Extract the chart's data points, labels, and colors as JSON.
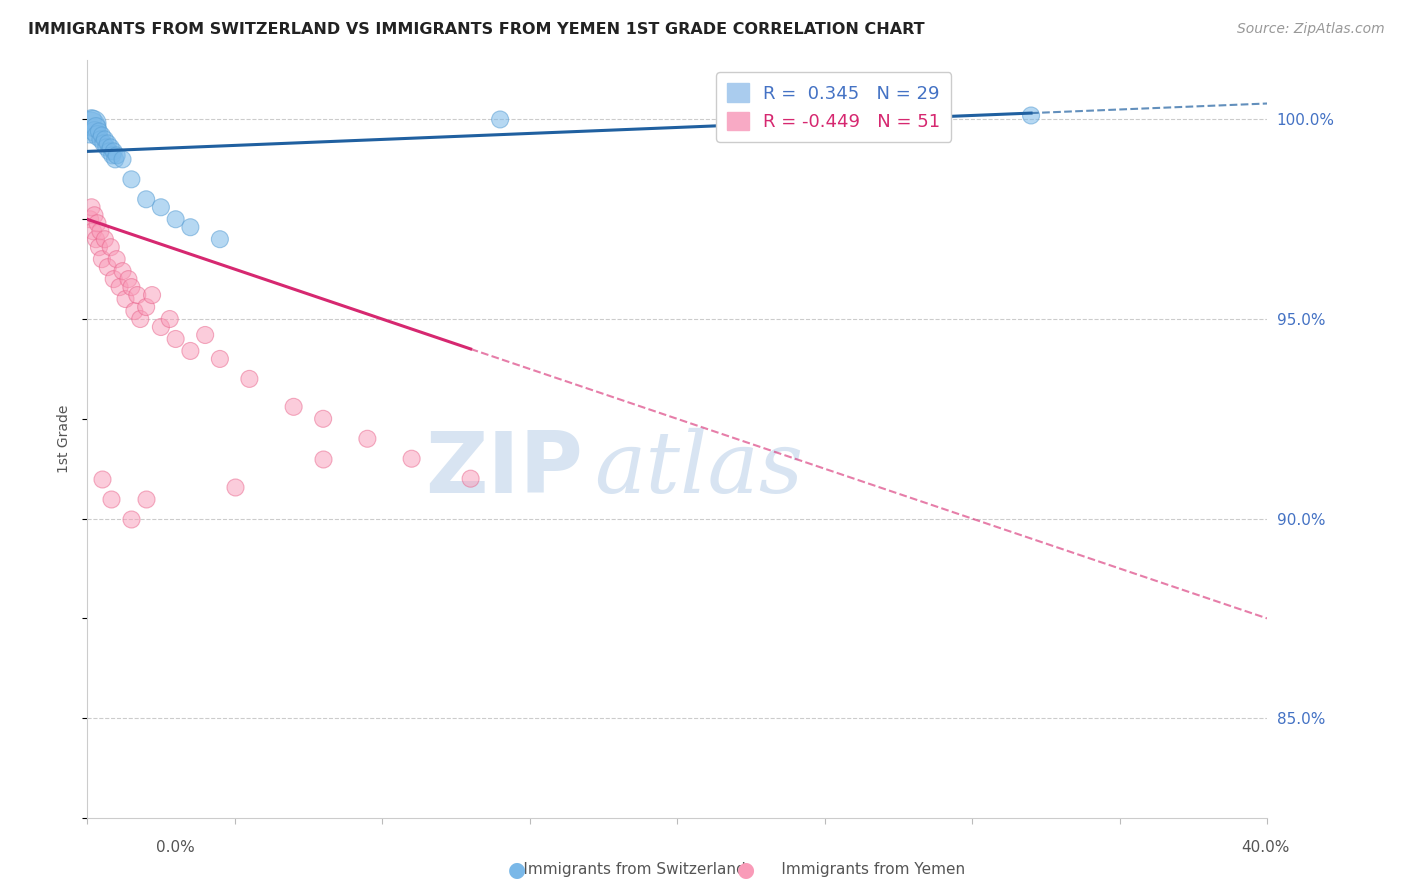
{
  "title": "IMMIGRANTS FROM SWITZERLAND VS IMMIGRANTS FROM YEMEN 1ST GRADE CORRELATION CHART",
  "source": "Source: ZipAtlas.com",
  "ylabel": "1st Grade",
  "xmin": 0.0,
  "xmax": 40.0,
  "ymin": 82.5,
  "ymax": 101.5,
  "yticks_right": [
    85.0,
    90.0,
    95.0,
    100.0
  ],
  "ytick_right_labels": [
    "85.0%",
    "90.0%",
    "95.0%",
    "100.0%"
  ],
  "switzerland_color": "#7ab8e8",
  "switzerland_edge": "#5a9fd4",
  "yemen_color": "#f99bb8",
  "yemen_edge": "#e8628a",
  "swiss_line_color": "#2060a0",
  "yemen_line_color": "#d62870",
  "swiss_R": 0.345,
  "swiss_N": 29,
  "yemen_R": -0.449,
  "yemen_N": 51,
  "legend_label_swiss": "R =  0.345   N = 29",
  "legend_label_yemen": "R = -0.449   N = 51",
  "watermark_zip": "ZIP",
  "watermark_atlas": "atlas",
  "background_color": "#ffffff",
  "swiss_x": [
    0.1,
    0.15,
    0.2,
    0.25,
    0.3,
    0.35,
    0.4,
    0.45,
    0.5,
    0.55,
    0.6,
    0.65,
    0.7,
    0.75,
    0.8,
    0.85,
    0.9,
    0.95,
    1.0,
    1.2,
    1.5,
    2.0,
    2.5,
    3.0,
    3.5,
    4.5,
    14.0,
    22.0,
    32.0
  ],
  "swiss_y": [
    99.8,
    100.0,
    99.9,
    99.7,
    99.8,
    99.6,
    99.7,
    99.5,
    99.6,
    99.4,
    99.5,
    99.3,
    99.4,
    99.2,
    99.3,
    99.1,
    99.2,
    99.0,
    99.1,
    99.0,
    98.5,
    98.0,
    97.8,
    97.5,
    97.3,
    97.0,
    100.0,
    100.2,
    100.1
  ],
  "swiss_sizes": [
    500,
    200,
    350,
    200,
    200,
    200,
    150,
    150,
    150,
    150,
    150,
    150,
    150,
    150,
    150,
    150,
    150,
    150,
    150,
    150,
    150,
    150,
    150,
    150,
    150,
    150,
    150,
    150,
    150
  ],
  "yemen_x": [
    0.1,
    0.15,
    0.2,
    0.25,
    0.3,
    0.35,
    0.4,
    0.45,
    0.5,
    0.6,
    0.7,
    0.8,
    0.9,
    1.0,
    1.1,
    1.2,
    1.3,
    1.4,
    1.5,
    1.6,
    1.7,
    1.8,
    2.0,
    2.2,
    2.5,
    2.8,
    3.0,
    3.5,
    4.0,
    4.5,
    5.5,
    7.0,
    8.0,
    9.5,
    11.0,
    13.0
  ],
  "yemen_y": [
    97.5,
    97.8,
    97.2,
    97.6,
    97.0,
    97.4,
    96.8,
    97.2,
    96.5,
    97.0,
    96.3,
    96.8,
    96.0,
    96.5,
    95.8,
    96.2,
    95.5,
    96.0,
    95.8,
    95.2,
    95.6,
    95.0,
    95.3,
    95.6,
    94.8,
    95.0,
    94.5,
    94.2,
    94.6,
    94.0,
    93.5,
    92.8,
    92.5,
    92.0,
    91.5,
    91.0
  ],
  "yemen_outliers_x": [
    0.5,
    0.8,
    1.5,
    2.0,
    5.0,
    8.0
  ],
  "yemen_outliers_y": [
    91.0,
    90.5,
    90.0,
    90.5,
    90.8,
    91.5
  ],
  "yemen_sizes": [
    150,
    150,
    150,
    150,
    150,
    150,
    150,
    150,
    150,
    150,
    150,
    150,
    150,
    150,
    150,
    150,
    150,
    150,
    150,
    150,
    150,
    150,
    150,
    150,
    150,
    150,
    150,
    150,
    150,
    150,
    150,
    150,
    150,
    150,
    150,
    150
  ],
  "swiss_line_x0": 0.0,
  "swiss_line_y0": 99.2,
  "swiss_line_x1": 40.0,
  "swiss_line_y1": 100.4,
  "yemen_line_x0": 0.0,
  "yemen_line_y0": 97.5,
  "yemen_line_x1": 40.0,
  "yemen_line_y1": 87.5,
  "yemen_solid_xmax": 13.0,
  "swiss_solid_xmax": 32.0
}
